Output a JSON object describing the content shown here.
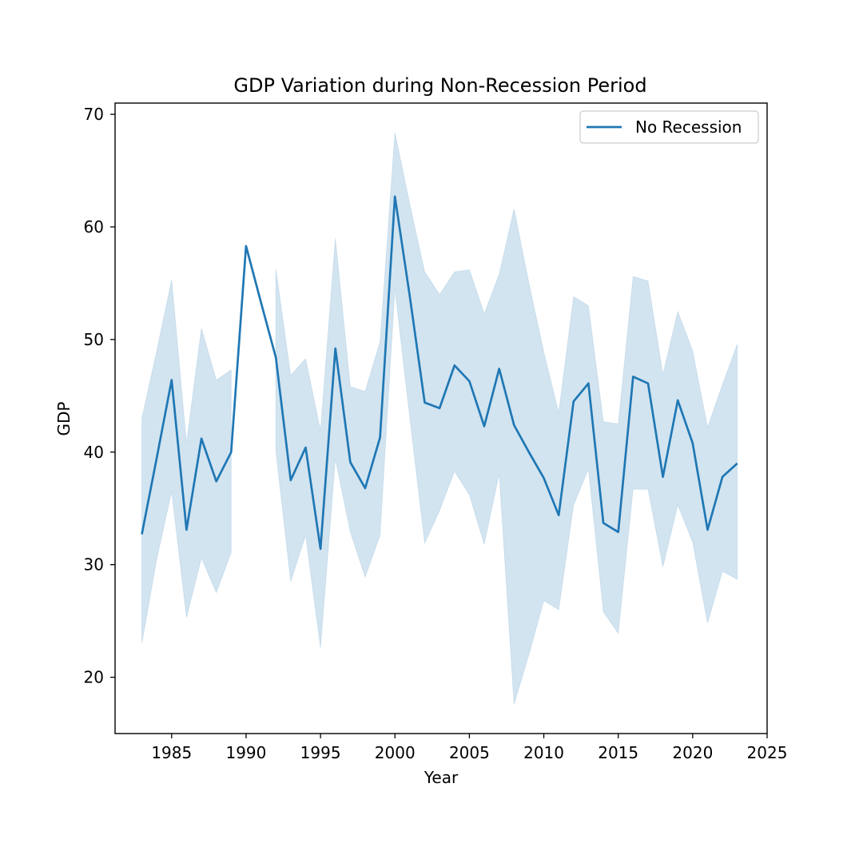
{
  "chart_data": {
    "type": "line",
    "title": "GDP Variation during Non-Recession Period",
    "xlabel": "Year",
    "ylabel": "GDP",
    "xlim": [
      1981.2,
      2025
    ],
    "ylim": [
      15,
      71
    ],
    "xticks": [
      "1985",
      "1990",
      "1995",
      "2000",
      "2005",
      "2010",
      "2015",
      "2020",
      "2025"
    ],
    "yticks": [
      "20",
      "30",
      "40",
      "50",
      "60",
      "70"
    ],
    "legend": "top-right",
    "grid": false,
    "color": "#1f77b4",
    "series": [
      {
        "name": "No Recession",
        "segments": [
          [
            {
              "x": 1983,
              "y": 32.7,
              "lo": 23.0,
              "hi": 43.0
            },
            {
              "x": 1984,
              "y": 39.5,
              "lo": 30.5,
              "hi": 49.0
            },
            {
              "x": 1985,
              "y": 46.4,
              "lo": 36.5,
              "hi": 55.3
            },
            {
              "x": 1986,
              "y": 33.1,
              "lo": 25.3,
              "hi": 40.8
            },
            {
              "x": 1987,
              "y": 41.2,
              "lo": 30.6,
              "hi": 51.0
            },
            {
              "x": 1988,
              "y": 37.4,
              "lo": 27.5,
              "hi": 46.4
            },
            {
              "x": 1989,
              "y": 40.0,
              "lo": 31.1,
              "hi": 47.3
            }
          ],
          [
            {
              "x": 1990,
              "y": 58.3,
              "lo": 58.3,
              "hi": 58.3
            },
            {
              "x": 1991,
              "y": 53.3,
              "lo": 53.3,
              "hi": 53.3
            }
          ],
          [
            {
              "x": 1992,
              "y": 48.4,
              "lo": 40.1,
              "hi": 56.3
            },
            {
              "x": 1993,
              "y": 37.5,
              "lo": 28.5,
              "hi": 46.8
            },
            {
              "x": 1994,
              "y": 40.4,
              "lo": 32.6,
              "hi": 48.3
            },
            {
              "x": 1995,
              "y": 31.4,
              "lo": 22.6,
              "hi": 41.9
            },
            {
              "x": 1996,
              "y": 49.2,
              "lo": 39.4,
              "hi": 59.0
            },
            {
              "x": 1997,
              "y": 39.1,
              "lo": 32.9,
              "hi": 45.8
            },
            {
              "x": 1998,
              "y": 36.8,
              "lo": 28.9,
              "hi": 45.4
            },
            {
              "x": 1999,
              "y": 41.3,
              "lo": 32.6,
              "hi": 49.8
            },
            {
              "x": 2000,
              "y": 62.7,
              "lo": 54.5,
              "hi": 68.4
            },
            {
              "x": 2001,
              "y": 53.8,
              "lo": 43.0,
              "hi": 62.0
            },
            {
              "x": 2002,
              "y": 44.4,
              "lo": 31.9,
              "hi": 56.0
            },
            {
              "x": 2003,
              "y": 43.9,
              "lo": 34.8,
              "hi": 54.0
            },
            {
              "x": 2004,
              "y": 47.7,
              "lo": 38.3,
              "hi": 56.0
            },
            {
              "x": 2005,
              "y": 46.3,
              "lo": 36.2,
              "hi": 56.2
            },
            {
              "x": 2006,
              "y": 42.3,
              "lo": 31.8,
              "hi": 52.3
            },
            {
              "x": 2007,
              "y": 47.4,
              "lo": 38.1,
              "hi": 55.8
            },
            {
              "x": 2008,
              "y": 42.4,
              "lo": 17.6,
              "hi": 61.6
            },
            {
              "x": 2009,
              "y": 40.0,
              "lo": 22.0,
              "hi": 55.0
            },
            {
              "x": 2010,
              "y": 37.7,
              "lo": 26.8,
              "hi": 48.9
            },
            {
              "x": 2011,
              "y": 34.4,
              "lo": 26.0,
              "hi": 43.5
            },
            {
              "x": 2012,
              "y": 44.5,
              "lo": 35.3,
              "hi": 53.8
            },
            {
              "x": 2013,
              "y": 46.1,
              "lo": 38.5,
              "hi": 53.0
            },
            {
              "x": 2014,
              "y": 33.7,
              "lo": 25.8,
              "hi": 42.7
            },
            {
              "x": 2015,
              "y": 32.9,
              "lo": 23.9,
              "hi": 42.5
            },
            {
              "x": 2016,
              "y": 46.7,
              "lo": 36.7,
              "hi": 55.6
            },
            {
              "x": 2017,
              "y": 46.1,
              "lo": 36.7,
              "hi": 55.2
            },
            {
              "x": 2018,
              "y": 37.8,
              "lo": 29.8,
              "hi": 46.9
            },
            {
              "x": 2019,
              "y": 44.6,
              "lo": 35.3,
              "hi": 52.5
            },
            {
              "x": 2020,
              "y": 40.8,
              "lo": 32.0,
              "hi": 49.0
            },
            {
              "x": 2021,
              "y": 33.1,
              "lo": 24.8,
              "hi": 42.2
            },
            {
              "x": 2022,
              "y": 37.8,
              "lo": 29.4,
              "hi": 46.0
            },
            {
              "x": 2023,
              "y": 39.0,
              "lo": 28.7,
              "hi": 49.6
            }
          ]
        ]
      }
    ]
  }
}
